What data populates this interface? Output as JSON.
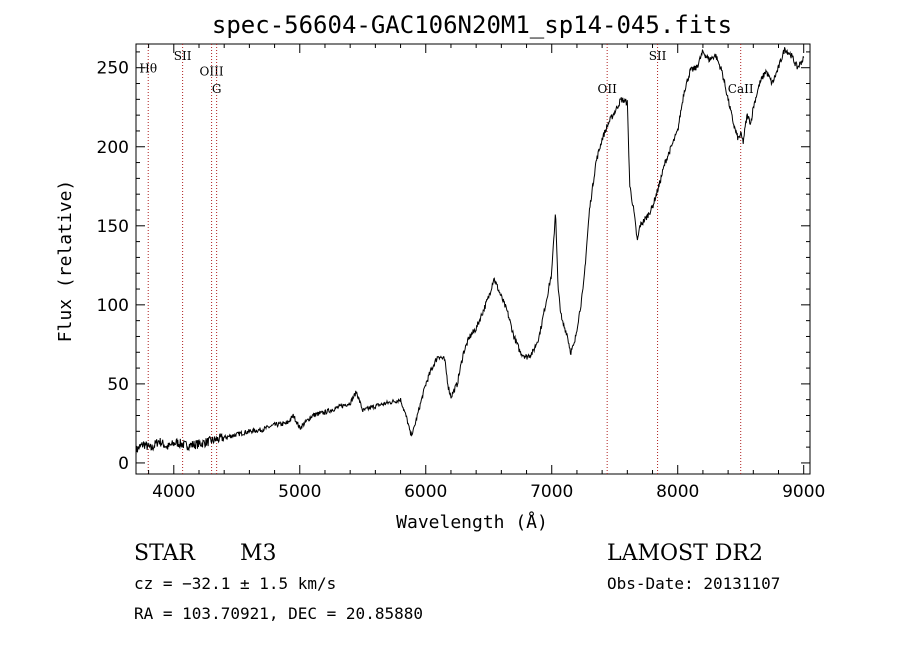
{
  "info": {
    "object_class": "STAR",
    "subclass": "M3",
    "survey": "LAMOST DR2",
    "cz": "cz = −32.1 ± 1.5 km/s",
    "obs_date": "Obs-Date: 20131107",
    "coords": "RA = 103.70921, DEC =  20.85880"
  },
  "chart_data": {
    "type": "line",
    "title": "spec-56604-GAC106N20M1_sp14-045.fits",
    "xlabel": "Wavelength (Å)",
    "ylabel": "Flux (relative)",
    "xlim": [
      3700,
      9050
    ],
    "ylim": [
      -7,
      265
    ],
    "grid": false,
    "x_ticks": [
      4000,
      5000,
      6000,
      7000,
      8000,
      9000
    ],
    "y_ticks": [
      0,
      50,
      100,
      150,
      200,
      250
    ],
    "spectral_lines": [
      {
        "label": "Hθ",
        "wavelength": 3797,
        "label_y": 247
      },
      {
        "label": "SII",
        "wavelength": 4070,
        "label_y": 255
      },
      {
        "label": "OIII",
        "wavelength": 4300,
        "label_y": 245
      },
      {
        "label": "G",
        "wavelength": 4340,
        "label_y": 234
      },
      {
        "label": "OII",
        "wavelength": 7440,
        "label_y": 234
      },
      {
        "label": "SII",
        "wavelength": 7840,
        "label_y": 255
      },
      {
        "label": "CaII",
        "wavelength": 8500,
        "label_y": 234
      }
    ],
    "series": [
      {
        "x": [
          3700,
          3760,
          3820,
          3880,
          3950,
          4020,
          4100,
          4200,
          4300,
          4400,
          4500,
          4600,
          4700,
          4800,
          4900,
          4950,
          5000,
          5100,
          5200,
          5300,
          5400,
          5450,
          5500,
          5600,
          5700,
          5800,
          5850,
          5880,
          5900,
          5950,
          6000,
          6050,
          6100,
          6150,
          6180,
          6200,
          6250,
          6300,
          6350,
          6400,
          6450,
          6500,
          6540,
          6600,
          6650,
          6700,
          6750,
          6800,
          6850,
          6900,
          6950,
          7000,
          7030,
          7050,
          7080,
          7120,
          7150,
          7180,
          7200,
          7250,
          7300,
          7350,
          7400,
          7450,
          7500,
          7550,
          7600,
          7620,
          7650,
          7680,
          7700,
          7750,
          7800,
          7850,
          7900,
          7950,
          8000,
          8050,
          8100,
          8150,
          8200,
          8250,
          8300,
          8350,
          8400,
          8450,
          8480,
          8500,
          8520,
          8550,
          8580,
          8600,
          8650,
          8700,
          8750,
          8800,
          8850,
          8900,
          8950,
          9000
        ],
        "y": [
          8,
          12,
          9,
          14,
          10,
          13,
          11,
          12,
          14,
          16,
          18,
          20,
          21,
          24,
          25,
          30,
          22,
          30,
          32,
          35,
          38,
          45,
          33,
          36,
          38,
          40,
          28,
          18,
          20,
          35,
          50,
          60,
          68,
          65,
          48,
          42,
          50,
          70,
          80,
          85,
          95,
          105,
          117,
          105,
          95,
          80,
          70,
          67,
          70,
          80,
          100,
          120,
          160,
          110,
          90,
          82,
          70,
          75,
          85,
          110,
          160,
          190,
          205,
          215,
          222,
          230,
          228,
          175,
          160,
          140,
          150,
          155,
          162,
          175,
          190,
          200,
          210,
          235,
          248,
          250,
          260,
          255,
          258,
          248,
          230,
          212,
          205,
          208,
          203,
          220,
          215,
          225,
          240,
          248,
          240,
          250,
          262,
          258,
          250,
          256
        ]
      }
    ]
  }
}
